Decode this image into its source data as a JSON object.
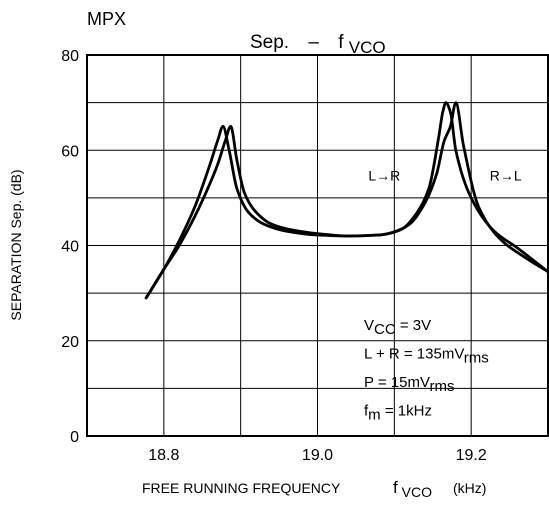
{
  "header": {
    "label": "MPX"
  },
  "chart_data": {
    "type": "line",
    "title": {
      "main": "Sep.",
      "dash": "–",
      "f": "f",
      "sub": "VCO"
    },
    "xlabel": {
      "main": "FREE RUNNING FREQUENCY",
      "f": "f",
      "sub": "VCO",
      "unit": "(kHz)"
    },
    "ylabel": "SEPARATION   Sep.   (dB)",
    "xlim": [
      18.7,
      19.3
    ],
    "ylim": [
      0,
      80
    ],
    "x_ticks": [
      {
        "value": 18.8,
        "label": "18.8"
      },
      {
        "value": 19.0,
        "label": "19.0"
      },
      {
        "value": 19.2,
        "label": "19.2"
      }
    ],
    "y_ticks": [
      {
        "value": 0,
        "label": "0"
      },
      {
        "value": 20,
        "label": "20"
      },
      {
        "value": 40,
        "label": "40"
      },
      {
        "value": 60,
        "label": "60"
      },
      {
        "value": 80,
        "label": "80"
      }
    ],
    "grid": true,
    "series": [
      {
        "x": [
          18.777,
          18.8,
          18.82,
          18.84,
          18.86,
          18.87,
          18.877,
          18.885,
          18.895,
          18.91,
          18.93,
          18.96,
          19.0,
          19.04,
          19.08,
          19.11,
          19.13,
          19.145,
          19.158,
          19.163,
          19.167,
          19.173,
          19.18,
          19.2,
          19.23,
          19.26,
          19.3
        ],
        "y": [
          29,
          35,
          41,
          48,
          57,
          62,
          65,
          60,
          52,
          47,
          44.5,
          43,
          42.2,
          42,
          42.2,
          43.5,
          47,
          52,
          63,
          68,
          70,
          68,
          60,
          50,
          43,
          39.5,
          34.5
        ]
      },
      {
        "x": [
          18.777,
          18.8,
          18.82,
          18.84,
          18.86,
          18.87,
          18.88,
          18.887,
          18.895,
          18.905,
          18.92,
          18.94,
          18.96,
          19.0,
          19.04,
          19.08,
          19.1,
          19.12,
          19.14,
          19.155,
          19.165,
          19.173,
          19.18,
          19.19,
          19.21,
          19.24,
          19.27,
          19.3
        ],
        "y": [
          29,
          35,
          40,
          46,
          53,
          57,
          62,
          65,
          58,
          51,
          47,
          44.5,
          43.5,
          42.5,
          42,
          42.2,
          42.8,
          44.5,
          49,
          55,
          62,
          65,
          70,
          61,
          48,
          41,
          37.5,
          34.5
        ]
      }
    ],
    "annotations": [
      {
        "text": "L→R",
        "x": 19.087,
        "y": 53.7
      },
      {
        "text": "R→L",
        "x": 19.245,
        "y": 53.7
      }
    ],
    "conditions": [
      {
        "main": "V",
        "sub": "CC",
        "rest": "= 3V"
      },
      {
        "main": "L + R = 135mV",
        "sub": "rms",
        "rest": ""
      },
      {
        "main": "P = 15mV",
        "sub": "rms",
        "rest": ""
      },
      {
        "main": "f",
        "sub": "m",
        "rest": "= 1kHz"
      }
    ]
  }
}
